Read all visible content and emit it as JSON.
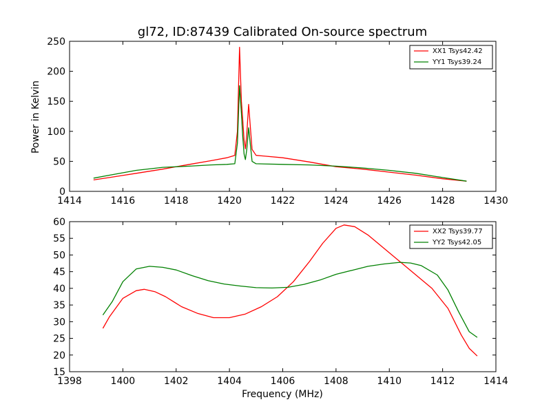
{
  "chart_data": [
    {
      "type": "line",
      "title": "gl72, ID:87439 Calibrated On-source spectrum",
      "xlabel": "",
      "ylabel": "Power in Kelvin",
      "xlim": [
        1414,
        1430
      ],
      "ylim": [
        0,
        250
      ],
      "xticks": [
        1414,
        1416,
        1418,
        1420,
        1422,
        1424,
        1426,
        1428,
        1430
      ],
      "yticks": [
        0,
        50,
        100,
        150,
        200,
        250
      ],
      "grid": false,
      "legend": "top-right",
      "series": [
        {
          "name": "XX1 Tsys42.42",
          "color": "#ff0000",
          "points": [
            [
              1414.9,
              19
            ],
            [
              1415.5,
              23
            ],
            [
              1416.5,
              30
            ],
            [
              1417.5,
              37
            ],
            [
              1418.5,
              45
            ],
            [
              1419.3,
              51
            ],
            [
              1419.9,
              56
            ],
            [
              1420.2,
              60
            ],
            [
              1420.3,
              100
            ],
            [
              1420.38,
              240
            ],
            [
              1420.45,
              150
            ],
            [
              1420.5,
              118
            ],
            [
              1420.55,
              85
            ],
            [
              1420.6,
              71
            ],
            [
              1420.65,
              95
            ],
            [
              1420.72,
              145
            ],
            [
              1420.78,
              110
            ],
            [
              1420.85,
              70
            ],
            [
              1421.0,
              60
            ],
            [
              1422.0,
              56
            ],
            [
              1423.0,
              49
            ],
            [
              1424.0,
              41
            ],
            [
              1425.0,
              37
            ],
            [
              1426.0,
              32
            ],
            [
              1427.0,
              27
            ],
            [
              1428.0,
              21
            ],
            [
              1428.9,
              17
            ]
          ]
        },
        {
          "name": "YY1 Tsys39.24",
          "color": "#008000",
          "points": [
            [
              1414.9,
              22
            ],
            [
              1415.5,
              27
            ],
            [
              1416.5,
              35
            ],
            [
              1417.5,
              40
            ],
            [
              1418.5,
              42
            ],
            [
              1419.3,
              44
            ],
            [
              1419.9,
              45
            ],
            [
              1420.2,
              46
            ],
            [
              1420.3,
              80
            ],
            [
              1420.38,
              176
            ],
            [
              1420.45,
              130
            ],
            [
              1420.5,
              90
            ],
            [
              1420.55,
              62
            ],
            [
              1420.6,
              53
            ],
            [
              1420.65,
              70
            ],
            [
              1420.72,
              106
            ],
            [
              1420.78,
              80
            ],
            [
              1420.85,
              50
            ],
            [
              1421.0,
              46
            ],
            [
              1422.0,
              45
            ],
            [
              1423.0,
              44
            ],
            [
              1424.0,
              42
            ],
            [
              1425.0,
              39
            ],
            [
              1426.0,
              35
            ],
            [
              1427.0,
              30
            ],
            [
              1428.0,
              23
            ],
            [
              1428.9,
              17
            ]
          ]
        }
      ]
    },
    {
      "type": "line",
      "title": "",
      "xlabel": "Frequency (MHz)",
      "ylabel": "",
      "xlim": [
        1398,
        1414
      ],
      "ylim": [
        15,
        60
      ],
      "xticks": [
        1398,
        1400,
        1402,
        1404,
        1406,
        1408,
        1410,
        1412,
        1414
      ],
      "yticks": [
        15,
        20,
        25,
        30,
        35,
        40,
        45,
        50,
        55,
        60
      ],
      "grid": false,
      "legend": "top-right",
      "series": [
        {
          "name": "XX2 Tsys39.77",
          "color": "#ff0000",
          "points": [
            [
              1399.25,
              28
            ],
            [
              1399.5,
              31.5
            ],
            [
              1400.0,
              37
            ],
            [
              1400.5,
              39.3
            ],
            [
              1400.8,
              39.7
            ],
            [
              1401.2,
              39
            ],
            [
              1401.6,
              37.5
            ],
            [
              1402.2,
              34.5
            ],
            [
              1402.8,
              32.5
            ],
            [
              1403.4,
              31.2
            ],
            [
              1404.0,
              31.2
            ],
            [
              1404.6,
              32.3
            ],
            [
              1405.2,
              34.5
            ],
            [
              1405.8,
              37.5
            ],
            [
              1406.4,
              42
            ],
            [
              1407.0,
              48
            ],
            [
              1407.5,
              53.5
            ],
            [
              1408.0,
              58
            ],
            [
              1408.3,
              59
            ],
            [
              1408.7,
              58.5
            ],
            [
              1409.2,
              56
            ],
            [
              1409.8,
              52
            ],
            [
              1410.4,
              48
            ],
            [
              1411.0,
              44
            ],
            [
              1411.6,
              40
            ],
            [
              1412.2,
              34
            ],
            [
              1412.7,
              26
            ],
            [
              1413.0,
              22
            ],
            [
              1413.3,
              19.7
            ]
          ]
        },
        {
          "name": "YY2 Tsys42.05",
          "color": "#008000",
          "points": [
            [
              1399.25,
              32
            ],
            [
              1399.6,
              36
            ],
            [
              1400.0,
              42
            ],
            [
              1400.5,
              45.8
            ],
            [
              1401.0,
              46.6
            ],
            [
              1401.5,
              46.3
            ],
            [
              1402.0,
              45.5
            ],
            [
              1402.6,
              43.8
            ],
            [
              1403.2,
              42.3
            ],
            [
              1403.8,
              41.3
            ],
            [
              1404.4,
              40.7
            ],
            [
              1405.0,
              40.2
            ],
            [
              1405.6,
              40.1
            ],
            [
              1406.2,
              40.3
            ],
            [
              1406.8,
              41.2
            ],
            [
              1407.4,
              42.5
            ],
            [
              1408.0,
              44.2
            ],
            [
              1408.6,
              45.4
            ],
            [
              1409.2,
              46.6
            ],
            [
              1409.8,
              47.3
            ],
            [
              1410.4,
              47.8
            ],
            [
              1410.8,
              47.6
            ],
            [
              1411.2,
              46.8
            ],
            [
              1411.8,
              44
            ],
            [
              1412.2,
              39.5
            ],
            [
              1412.6,
              33
            ],
            [
              1413.0,
              27
            ],
            [
              1413.3,
              25.3
            ]
          ]
        }
      ]
    }
  ]
}
